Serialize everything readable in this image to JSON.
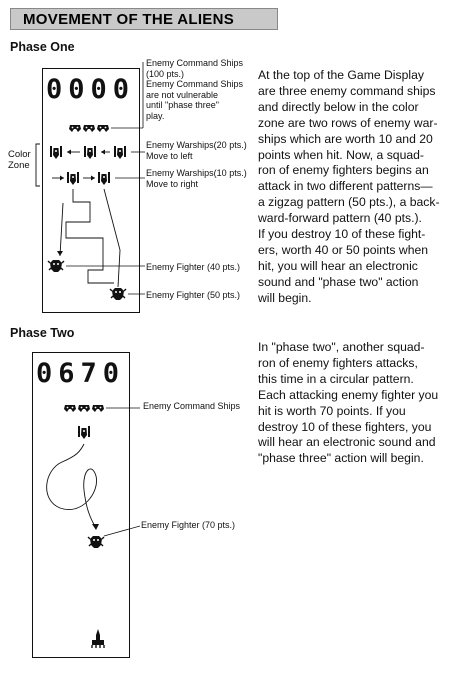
{
  "section_title": "MOVEMENT OF THE ALIENS",
  "phase_one": {
    "heading": "Phase One",
    "score": "0000",
    "side_label": [
      "Color",
      "Zone"
    ],
    "labels": {
      "command_ships": [
        "Enemy Command Ships",
        "(100 pts.)",
        "Enemy Command Ships",
        "are not vulnerable",
        "until \"phase three\"",
        "play."
      ],
      "warships_20": [
        "Enemy Warships(20 pts.)",
        "Move to left"
      ],
      "warships_10": [
        "Enemy Warships(10 pts.)",
        "Move to right"
      ],
      "fighter_40": "Enemy Fighter (40 pts.)",
      "fighter_50": "Enemy Fighter (50 pts.)"
    },
    "text_lines": [
      "At the top of the Game Display",
      "are three enemy command ships",
      "and directly below in the color",
      "zone are two rows of enemy war-",
      "ships which are worth 10 and 20",
      "points when hit.  Now, a squad-",
      "ron of enemy fighters begins an",
      "attack in two different patterns—",
      "a zigzag pattern (50 pts.), a back-",
      "ward-forward pattern (40 pts.).",
      "If you destroy 10 of these fight-",
      "ers, worth 40 or 50 points when",
      "hit, you will hear an electronic",
      "sound and \"phase two\" action",
      "will begin."
    ]
  },
  "phase_two": {
    "heading": "Phase Two",
    "score": "0670",
    "labels": {
      "command_ships": "Enemy Command Ships",
      "fighter_70": "Enemy Fighter  (70 pts.)"
    },
    "text_lines": [
      "In \"phase two\", another squad-",
      "ron of enemy fighters attacks,",
      "this time in a circular pattern.",
      "Each attacking enemy fighter you",
      "hit is worth 70 points.  If you",
      "destroy 10 of these fighters, you",
      "will hear an electronic sound and",
      "\"phase three\" action will begin."
    ]
  }
}
